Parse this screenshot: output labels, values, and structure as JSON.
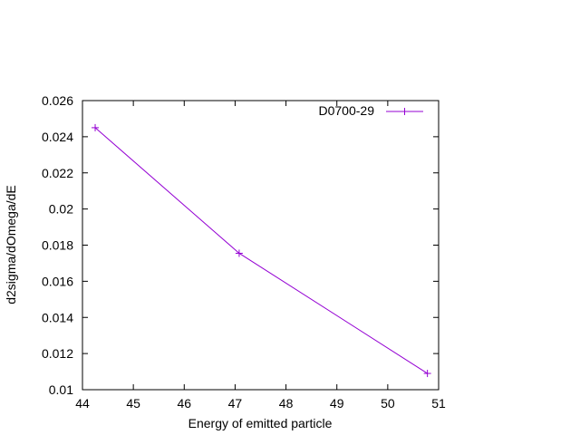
{
  "chart_data": {
    "type": "line",
    "title": "",
    "xlabel": "Energy of emitted particle",
    "ylabel": "d2sigma/dOmega/dE",
    "xlim": [
      44,
      51
    ],
    "ylim": [
      0.01,
      0.026
    ],
    "x_ticks": [
      "44",
      "45",
      "46",
      "47",
      "48",
      "49",
      "50",
      "51"
    ],
    "y_ticks": [
      "0.01",
      "0.012",
      "0.014",
      "0.016",
      "0.018",
      "0.02",
      "0.022",
      "0.024",
      "0.026"
    ],
    "grid": false,
    "legend_position": "top-right",
    "series": [
      {
        "name": "D0700-29",
        "color": "#9400d3",
        "marker": "plus",
        "x": [
          44.25,
          47.08,
          50.78
        ],
        "y": [
          0.0245,
          0.01755,
          0.0109
        ]
      }
    ]
  }
}
